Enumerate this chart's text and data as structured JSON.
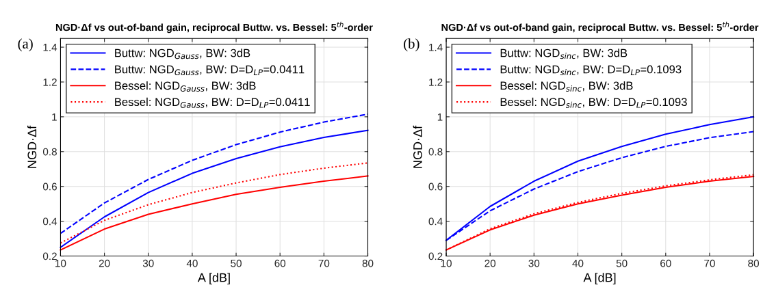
{
  "chart_data": [
    {
      "type": "line",
      "title": "NGD·Δf vs out-of-band gain, reciprocal Buttw. vs. Bessel: 5$^{th}$-order",
      "xlabel": "A [dB]",
      "ylabel": "NGD·Δf",
      "annotations": [
        "(a)"
      ],
      "x": [
        10,
        20,
        30,
        40,
        50,
        60,
        70,
        80
      ],
      "xlim": [
        10,
        80
      ],
      "xticks": [
        10,
        20,
        30,
        40,
        50,
        60,
        70,
        80
      ],
      "ylim": [
        0.2,
        1.45
      ],
      "yticks": [
        0.2,
        0.4,
        0.6,
        0.8,
        1,
        1.2,
        1.4
      ],
      "grid": true,
      "legend": "top left",
      "series": [
        {
          "name": "Buttw: NGD$_{Gauss}$, BW: 3dB",
          "color": "#0000ff",
          "line_style": "solid",
          "values": [
            0.25,
            0.425,
            0.565,
            0.675,
            0.76,
            0.828,
            0.882,
            0.922
          ]
        },
        {
          "name": "Buttw: NGD$_{Gauss}$, BW: D=D$_{LP}$=0.0411",
          "color": "#0000ff",
          "line_style": "dashed",
          "values": [
            0.33,
            0.505,
            0.64,
            0.75,
            0.84,
            0.912,
            0.97,
            1.015
          ]
        },
        {
          "name": "Bessel: NGD$_{Gauss}$, BW: 3dB",
          "color": "#ff0000",
          "line_style": "solid",
          "values": [
            0.235,
            0.355,
            0.44,
            0.5,
            0.555,
            0.595,
            0.63,
            0.66
          ]
        },
        {
          "name": "Bessel: NGD$_{Gauss}$, BW: D=D$_{LP}$=0.0411",
          "color": "#ff0000",
          "line_style": "dotted",
          "values": [
            0.275,
            0.405,
            0.495,
            0.565,
            0.62,
            0.668,
            0.705,
            0.735
          ]
        }
      ]
    },
    {
      "type": "line",
      "title": "NGD·Δf vs out-of-band gain, reciprocal Buttw. vs. Bessel: 5$^{th}$-order",
      "xlabel": "A [dB]",
      "ylabel": "NGD·Δf",
      "annotations": [
        "(b)"
      ],
      "x": [
        10,
        20,
        30,
        40,
        50,
        60,
        70,
        80
      ],
      "xlim": [
        10,
        80
      ],
      "xticks": [
        10,
        20,
        30,
        40,
        50,
        60,
        70,
        80
      ],
      "ylim": [
        0.2,
        1.45
      ],
      "yticks": [
        0.2,
        0.4,
        0.6,
        0.8,
        1,
        1.2,
        1.4
      ],
      "grid": true,
      "legend": "top left",
      "series": [
        {
          "name": "Buttw: NGD$_{sinc}$, BW: 3dB",
          "color": "#0000ff",
          "line_style": "solid",
          "values": [
            0.29,
            0.485,
            0.63,
            0.745,
            0.83,
            0.9,
            0.955,
            1.0
          ]
        },
        {
          "name": "Buttw: NGD$_{sinc}$, BW: D=D$_{LP}$=0.1093",
          "color": "#0000ff",
          "line_style": "dashed",
          "values": [
            0.29,
            0.46,
            0.585,
            0.685,
            0.765,
            0.83,
            0.88,
            0.915
          ]
        },
        {
          "name": "Bessel: NGD$_{sinc}$, BW: 3dB",
          "color": "#ff0000",
          "line_style": "solid",
          "values": [
            0.235,
            0.35,
            0.435,
            0.5,
            0.55,
            0.595,
            0.63,
            0.657
          ]
        },
        {
          "name": "Bessel: NGD$_{sinc}$, BW: D=D$_{LP}$=0.1093",
          "color": "#ff0000",
          "line_style": "dotted",
          "values": [
            0.235,
            0.357,
            0.443,
            0.508,
            0.56,
            0.603,
            0.638,
            0.667
          ]
        }
      ]
    }
  ]
}
